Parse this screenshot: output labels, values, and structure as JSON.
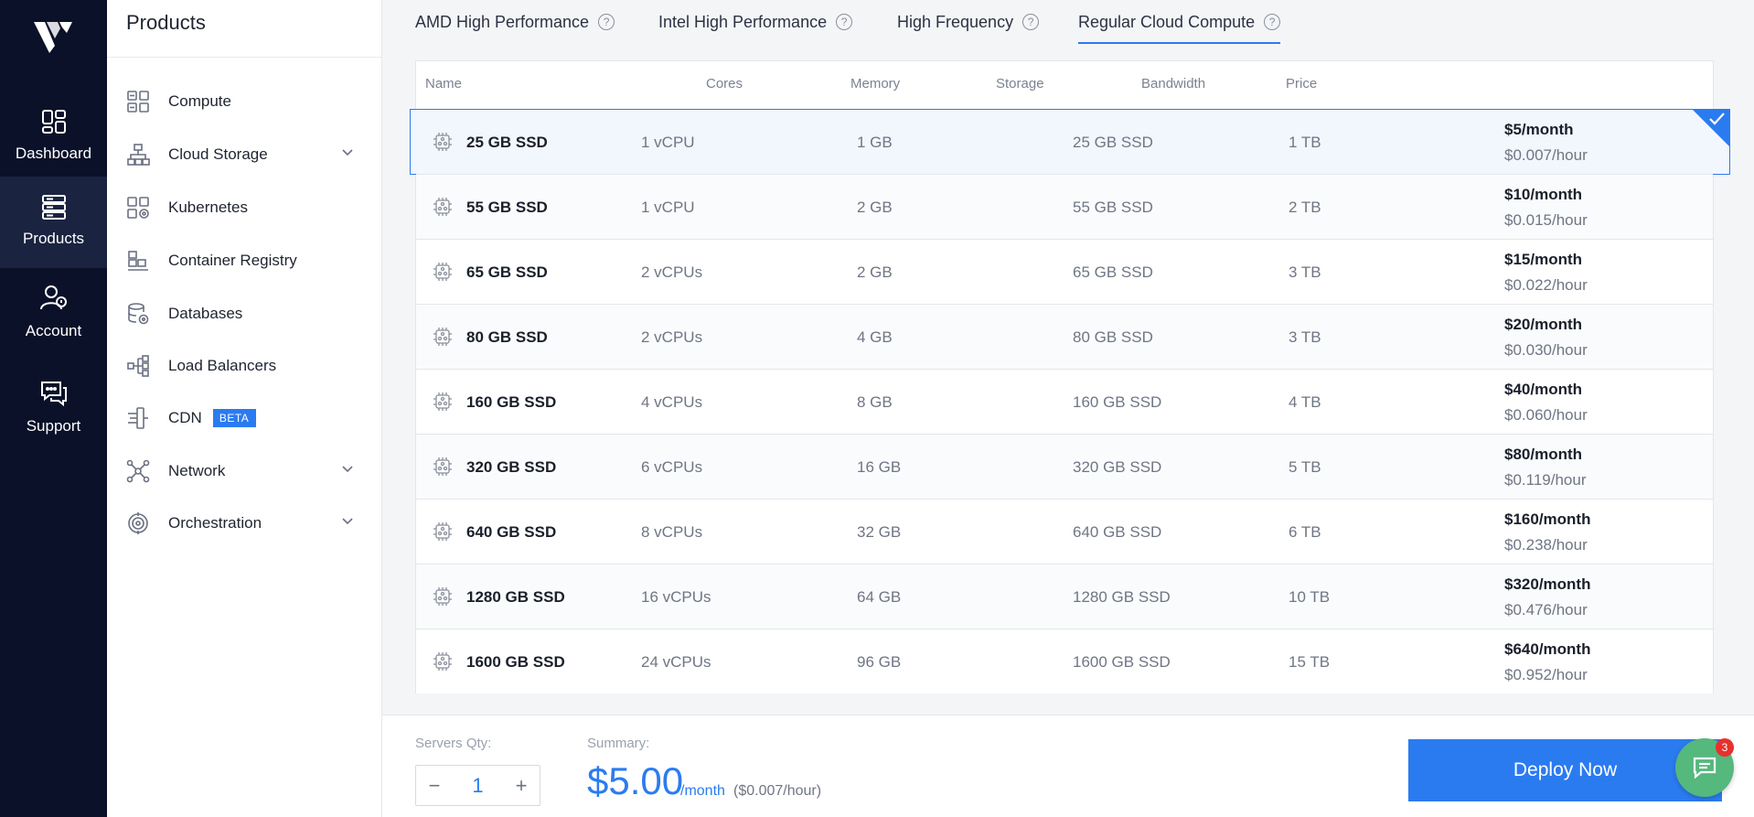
{
  "rail": {
    "items": [
      {
        "label": "Dashboard",
        "icon": "dashboard-icon"
      },
      {
        "label": "Products",
        "icon": "products-icon"
      },
      {
        "label": "Account",
        "icon": "account-icon"
      },
      {
        "label": "Support",
        "icon": "support-icon"
      }
    ]
  },
  "sidebar": {
    "title": "Products",
    "items": [
      {
        "label": "Compute",
        "icon": "compute-icon"
      },
      {
        "label": "Cloud Storage",
        "icon": "cloud-storage-icon"
      },
      {
        "label": "Kubernetes",
        "icon": "kubernetes-icon"
      },
      {
        "label": "Container Registry",
        "icon": "container-registry-icon"
      },
      {
        "label": "Databases",
        "icon": "databases-icon"
      },
      {
        "label": "Load Balancers",
        "icon": "load-balancers-icon"
      },
      {
        "label": "CDN",
        "icon": "cdn-icon",
        "badge": "BETA"
      },
      {
        "label": "Network",
        "icon": "network-icon"
      },
      {
        "label": "Orchestration",
        "icon": "orchestration-icon"
      }
    ]
  },
  "tabs": [
    {
      "label": "AMD High Performance"
    },
    {
      "label": "Intel High Performance"
    },
    {
      "label": "High Frequency"
    },
    {
      "label": "Regular Cloud Compute",
      "active": true
    }
  ],
  "table": {
    "headers": {
      "name": "Name",
      "cores": "Cores",
      "memory": "Memory",
      "storage": "Storage",
      "bandwidth": "Bandwidth",
      "price": "Price"
    },
    "rows": [
      {
        "name": "25 GB SSD",
        "cores": "1 vCPU",
        "memory": "1 GB",
        "storage": "25 GB SSD",
        "bandwidth": "1 TB",
        "month": "$5/month",
        "hour": "$0.007/hour",
        "selected": true
      },
      {
        "name": "55 GB SSD",
        "cores": "1 vCPU",
        "memory": "2 GB",
        "storage": "55 GB SSD",
        "bandwidth": "2 TB",
        "month": "$10/month",
        "hour": "$0.015/hour"
      },
      {
        "name": "65 GB SSD",
        "cores": "2 vCPUs",
        "memory": "2 GB",
        "storage": "65 GB SSD",
        "bandwidth": "3 TB",
        "month": "$15/month",
        "hour": "$0.022/hour"
      },
      {
        "name": "80 GB SSD",
        "cores": "2 vCPUs",
        "memory": "4 GB",
        "storage": "80 GB SSD",
        "bandwidth": "3 TB",
        "month": "$20/month",
        "hour": "$0.030/hour"
      },
      {
        "name": "160 GB SSD",
        "cores": "4 vCPUs",
        "memory": "8 GB",
        "storage": "160 GB SSD",
        "bandwidth": "4 TB",
        "month": "$40/month",
        "hour": "$0.060/hour"
      },
      {
        "name": "320 GB SSD",
        "cores": "6 vCPUs",
        "memory": "16 GB",
        "storage": "320 GB SSD",
        "bandwidth": "5 TB",
        "month": "$80/month",
        "hour": "$0.119/hour"
      },
      {
        "name": "640 GB SSD",
        "cores": "8 vCPUs",
        "memory": "32 GB",
        "storage": "640 GB SSD",
        "bandwidth": "6 TB",
        "month": "$160/month",
        "hour": "$0.238/hour"
      },
      {
        "name": "1280 GB SSD",
        "cores": "16 vCPUs",
        "memory": "64 GB",
        "storage": "1280 GB SSD",
        "bandwidth": "10 TB",
        "month": "$320/month",
        "hour": "$0.476/hour"
      },
      {
        "name": "1600 GB SSD",
        "cores": "24 vCPUs",
        "memory": "96 GB",
        "storage": "1600 GB SSD",
        "bandwidth": "15 TB",
        "month": "$640/month",
        "hour": "$0.952/hour"
      }
    ]
  },
  "footer": {
    "qty_label": "Servers Qty:",
    "qty_value": "1",
    "minus": "−",
    "plus": "+",
    "summary_label": "Summary:",
    "summary_price": "$5.00",
    "summary_unit": "/month",
    "summary_hour": "($0.007/hour)",
    "deploy_label": "Deploy Now",
    "chat_badge": "3"
  },
  "colors": {
    "accent": "#2b7bf0",
    "rail": "#0a1129",
    "chat": "#55b87d",
    "badge": "#e5322d"
  }
}
